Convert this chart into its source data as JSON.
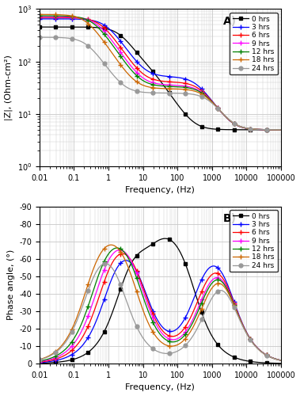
{
  "series": [
    {
      "label": "0 hrs",
      "color": "#000000",
      "marker": "s",
      "linestyle": "-",
      "markersize": 3.5
    },
    {
      "label": "3 hrs",
      "color": "#0000ff",
      "marker": "+",
      "linestyle": "-",
      "markersize": 5
    },
    {
      "label": "6 hrs",
      "color": "#ff0000",
      "marker": "+",
      "linestyle": "-",
      "markersize": 5
    },
    {
      "label": "9 hrs",
      "color": "#ff00ff",
      "marker": "+",
      "linestyle": "-",
      "markersize": 5
    },
    {
      "label": "12 hrs",
      "color": "#008000",
      "marker": "+",
      "linestyle": "-",
      "markersize": 5
    },
    {
      "label": "18 hrs",
      "color": "#cc6600",
      "marker": "+",
      "linestyle": "-",
      "markersize": 5
    },
    {
      "label": "24 hrs",
      "color": "#999999",
      "marker": "o",
      "linestyle": "-",
      "markersize": 3.5
    }
  ],
  "freq_range": [
    0.01,
    100000
  ],
  "impedance_ylim": [
    1,
    1000
  ],
  "phase_ylim": [
    -90,
    0
  ],
  "phase_yticks": [
    -90,
    -80,
    -70,
    -60,
    -50,
    -40,
    -30,
    -20,
    -10,
    0
  ],
  "ylabel_A": "|Z|, (Ohm-cm²)",
  "ylabel_B": "Phase angle, (°)",
  "xlabel": "Frequency, (Hz)",
  "label_A": "A)",
  "label_B": "B)",
  "background_color": "#ffffff",
  "grid_color": "#c8c8c8",
  "legend_fontsize": 6.5,
  "axis_labelsize": 8,
  "tick_labelsize": 7
}
